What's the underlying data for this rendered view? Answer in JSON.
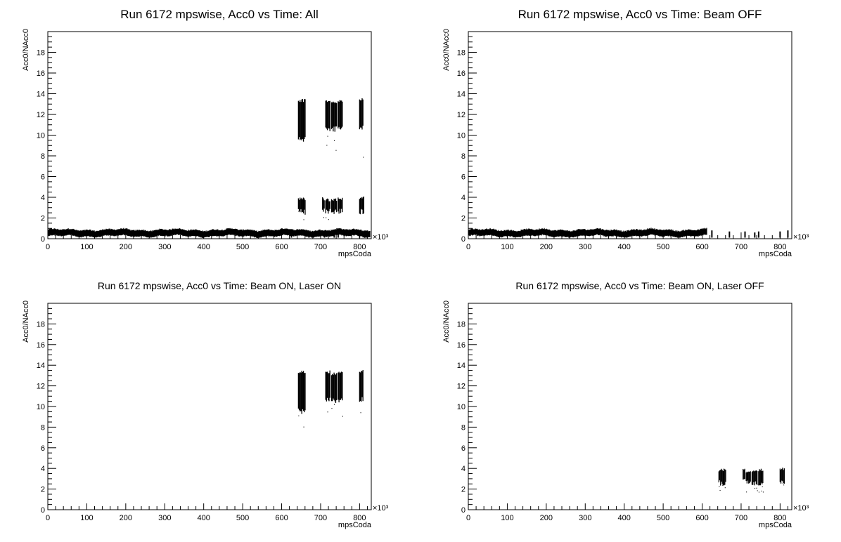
{
  "chart_data": [
    {
      "type": "scatter",
      "title": "Run 6172 mpswise, Acc0 vs Time: All",
      "xlabel": "mpsCoda",
      "ylabel": "Acc0/NAcc0",
      "x_multiplier_label": "×10³",
      "xlim": [
        0,
        830
      ],
      "ylim": [
        0,
        20
      ],
      "x_ticks": [
        "0",
        "100",
        "200",
        "300",
        "400",
        "500",
        "600",
        "700",
        "800"
      ],
      "y_ticks": [
        "0",
        "2",
        "4",
        "6",
        "8",
        "10",
        "12",
        "14",
        "16",
        "18"
      ],
      "baseline": {
        "x": [
          0,
          830
        ],
        "low": 0.3,
        "high": 0.8
      },
      "gap_marks": [
        {
          "x": 625,
          "low": 0.1,
          "high": 0.8
        },
        {
          "x": 670,
          "low": 0.1,
          "high": 0.7
        },
        {
          "x": 710,
          "low": 0.1,
          "high": 0.7
        },
        {
          "x": 735,
          "low": 0.1,
          "high": 0.6
        },
        {
          "x": 745,
          "low": 0.1,
          "high": 0.7
        },
        {
          "x": 800,
          "low": 0.1,
          "high": 0.7
        },
        {
          "x": 820,
          "low": 0.1,
          "high": 0.8
        }
      ],
      "clusters": [
        {
          "x0": 643,
          "x1": 661,
          "low": 8.5,
          "high": 13.5,
          "tail": 7.8
        },
        {
          "x0": 713,
          "x1": 725,
          "low": 9.8,
          "high": 13.5,
          "tail": 9.0
        },
        {
          "x0": 728,
          "x1": 741,
          "low": 9.8,
          "high": 13.3,
          "tail": 7.5
        },
        {
          "x0": 745,
          "x1": 757,
          "low": 9.8,
          "high": 13.4,
          "tail": 8.3
        },
        {
          "x0": 800,
          "x1": 810,
          "low": 9.8,
          "high": 13.6,
          "tail": 7.9
        },
        {
          "x0": 643,
          "x1": 661,
          "low": 2.0,
          "high": 4.0,
          "tail": 1.7
        },
        {
          "x0": 705,
          "x1": 710,
          "low": 2.3,
          "high": 4.0,
          "tail": 2.0
        },
        {
          "x0": 713,
          "x1": 725,
          "low": 2.0,
          "high": 3.9,
          "tail": 1.6
        },
        {
          "x0": 728,
          "x1": 741,
          "low": 2.0,
          "high": 3.9,
          "tail": 1.7
        },
        {
          "x0": 745,
          "x1": 757,
          "low": 2.0,
          "high": 4.0,
          "tail": 1.6
        },
        {
          "x0": 800,
          "x1": 812,
          "low": 2.0,
          "high": 4.1,
          "tail": 1.6
        }
      ]
    },
    {
      "type": "scatter",
      "title": "Run 6172 mpswise, Acc0 vs Time: Beam OFF",
      "xlabel": "mpsCoda",
      "ylabel": "Acc0/NAcc0",
      "x_multiplier_label": "×10³",
      "xlim": [
        0,
        830
      ],
      "ylim": [
        0,
        20
      ],
      "x_ticks": [
        "0",
        "100",
        "200",
        "300",
        "400",
        "500",
        "600",
        "700",
        "800"
      ],
      "y_ticks": [
        "0",
        "2",
        "4",
        "6",
        "8",
        "10",
        "12",
        "14",
        "16",
        "18"
      ],
      "baseline": {
        "x": [
          0,
          615
        ],
        "low": 0.3,
        "high": 0.8
      },
      "gap_marks": [
        {
          "x": 625,
          "low": 0.1,
          "high": 0.8
        },
        {
          "x": 670,
          "low": 0.1,
          "high": 0.7
        },
        {
          "x": 710,
          "low": 0.1,
          "high": 0.7
        },
        {
          "x": 735,
          "low": 0.1,
          "high": 0.6
        },
        {
          "x": 745,
          "low": 0.1,
          "high": 0.7
        },
        {
          "x": 800,
          "low": 0.1,
          "high": 0.7
        },
        {
          "x": 820,
          "low": 0.1,
          "high": 0.8
        }
      ],
      "clusters": []
    },
    {
      "type": "scatter",
      "title": "Run 6172 mpswise, Acc0 vs Time: Beam ON, Laser ON",
      "xlabel": "mpsCoda",
      "ylabel": "Acc0/NAcc0",
      "x_multiplier_label": "×10³",
      "xlim": [
        0,
        830
      ],
      "ylim": [
        0,
        20
      ],
      "x_ticks": [
        "0",
        "100",
        "200",
        "300",
        "400",
        "500",
        "600",
        "700",
        "800"
      ],
      "y_ticks": [
        "0",
        "2",
        "4",
        "6",
        "8",
        "10",
        "12",
        "14",
        "16",
        "18"
      ],
      "baseline": null,
      "gap_marks": [],
      "clusters": [
        {
          "x0": 643,
          "x1": 661,
          "low": 8.5,
          "high": 13.5,
          "tail": 7.8
        },
        {
          "x0": 713,
          "x1": 725,
          "low": 9.8,
          "high": 13.5,
          "tail": 9.0
        },
        {
          "x0": 728,
          "x1": 741,
          "low": 9.8,
          "high": 13.3,
          "tail": 7.5
        },
        {
          "x0": 745,
          "x1": 757,
          "low": 9.8,
          "high": 13.4,
          "tail": 8.3
        },
        {
          "x0": 800,
          "x1": 810,
          "low": 9.8,
          "high": 13.6,
          "tail": 7.9
        }
      ]
    },
    {
      "type": "scatter",
      "title": "Run 6172 mpswise, Acc0 vs Time: Beam ON, Laser OFF",
      "xlabel": "mpsCoda",
      "ylabel": "Acc0/NAcc0",
      "x_multiplier_label": "×10³",
      "xlim": [
        0,
        830
      ],
      "ylim": [
        0,
        20
      ],
      "x_ticks": [
        "0",
        "100",
        "200",
        "300",
        "400",
        "500",
        "600",
        "700",
        "800"
      ],
      "y_ticks": [
        "0",
        "2",
        "4",
        "6",
        "8",
        "10",
        "12",
        "14",
        "16",
        "18"
      ],
      "baseline": null,
      "gap_marks": [],
      "clusters": [
        {
          "x0": 643,
          "x1": 661,
          "low": 2.0,
          "high": 4.0,
          "tail": 1.7
        },
        {
          "x0": 705,
          "x1": 710,
          "low": 2.3,
          "high": 4.0,
          "tail": 2.0
        },
        {
          "x0": 713,
          "x1": 725,
          "low": 2.0,
          "high": 3.9,
          "tail": 1.6
        },
        {
          "x0": 728,
          "x1": 741,
          "low": 2.0,
          "high": 3.9,
          "tail": 1.7
        },
        {
          "x0": 745,
          "x1": 757,
          "low": 2.0,
          "high": 4.0,
          "tail": 1.6
        },
        {
          "x0": 800,
          "x1": 812,
          "low": 2.0,
          "high": 4.1,
          "tail": 1.6
        }
      ]
    }
  ]
}
